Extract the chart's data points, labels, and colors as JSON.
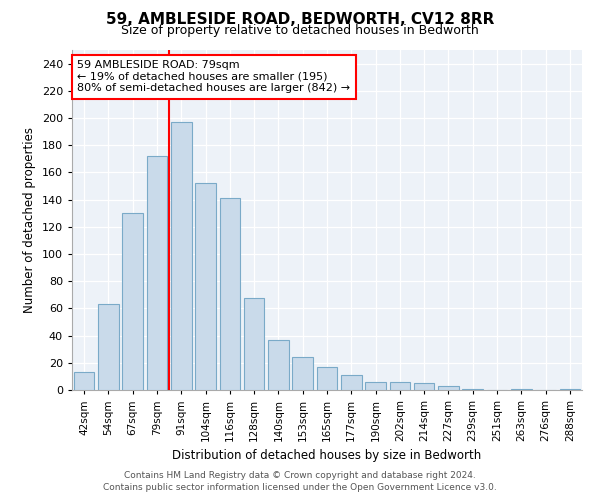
{
  "title": "59, AMBLESIDE ROAD, BEDWORTH, CV12 8RR",
  "subtitle": "Size of property relative to detached houses in Bedworth",
  "xlabel": "Distribution of detached houses by size in Bedworth",
  "ylabel": "Number of detached properties",
  "bar_color": "#c9daea",
  "bar_edge_color": "#7aaac8",
  "background_color": "#edf2f8",
  "categories": [
    "42sqm",
    "54sqm",
    "67sqm",
    "79sqm",
    "91sqm",
    "104sqm",
    "116sqm",
    "128sqm",
    "140sqm",
    "153sqm",
    "165sqm",
    "177sqm",
    "190sqm",
    "202sqm",
    "214sqm",
    "227sqm",
    "239sqm",
    "251sqm",
    "263sqm",
    "276sqm",
    "288sqm"
  ],
  "values": [
    13,
    63,
    130,
    172,
    197,
    152,
    141,
    68,
    37,
    24,
    17,
    11,
    6,
    6,
    5,
    3,
    1,
    0,
    1,
    0,
    1
  ],
  "ylim": [
    0,
    250
  ],
  "yticks": [
    0,
    20,
    40,
    60,
    80,
    100,
    120,
    140,
    160,
    180,
    200,
    220,
    240
  ],
  "red_line_index": 3,
  "annotation_text": "59 AMBLESIDE ROAD: 79sqm\n← 19% of detached houses are smaller (195)\n80% of semi-detached houses are larger (842) →",
  "footer_line1": "Contains HM Land Registry data © Crown copyright and database right 2024.",
  "footer_line2": "Contains public sector information licensed under the Open Government Licence v3.0."
}
